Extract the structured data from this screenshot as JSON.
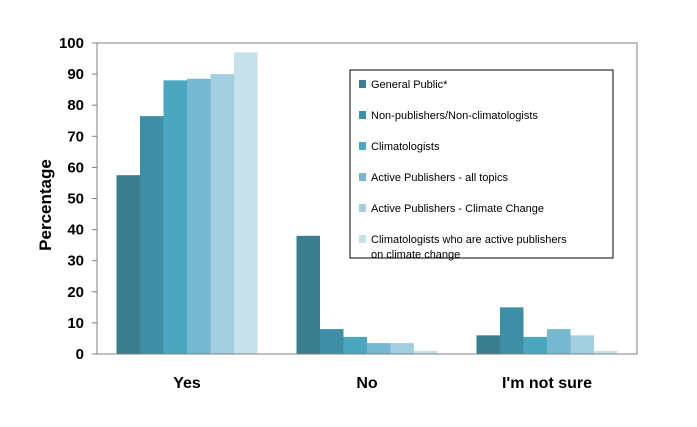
{
  "chart_data": {
    "type": "bar",
    "ylabel": "Percentage",
    "ylim": [
      0,
      100
    ],
    "yticks": [
      0,
      10,
      20,
      30,
      40,
      50,
      60,
      70,
      80,
      90,
      100
    ],
    "grid": false,
    "legend_position": "right",
    "categories": [
      "Yes",
      "No",
      "I'm not sure"
    ],
    "series": [
      {
        "name": "General Public*",
        "color": "#3a7d8e",
        "values": [
          57.5,
          38,
          6
        ]
      },
      {
        "name": "Non-publishers/Non-climatologists",
        "color": "#3e8fa5",
        "values": [
          76.5,
          8,
          15
        ]
      },
      {
        "name": "Climatologists",
        "color": "#4ba7c0",
        "values": [
          88,
          5.5,
          5.5
        ]
      },
      {
        "name": "Active Publishers - all topics",
        "color": "#75b8cf",
        "values": [
          88.5,
          3.5,
          8
        ]
      },
      {
        "name": "Active Publishers - Climate  Change",
        "color": "#a3cfe0",
        "values": [
          90,
          3.5,
          6
        ]
      },
      {
        "name": "Climatologists  who are active publishers on climate change",
        "color": "#c6e1ea",
        "values": [
          97,
          1,
          1
        ]
      }
    ]
  }
}
